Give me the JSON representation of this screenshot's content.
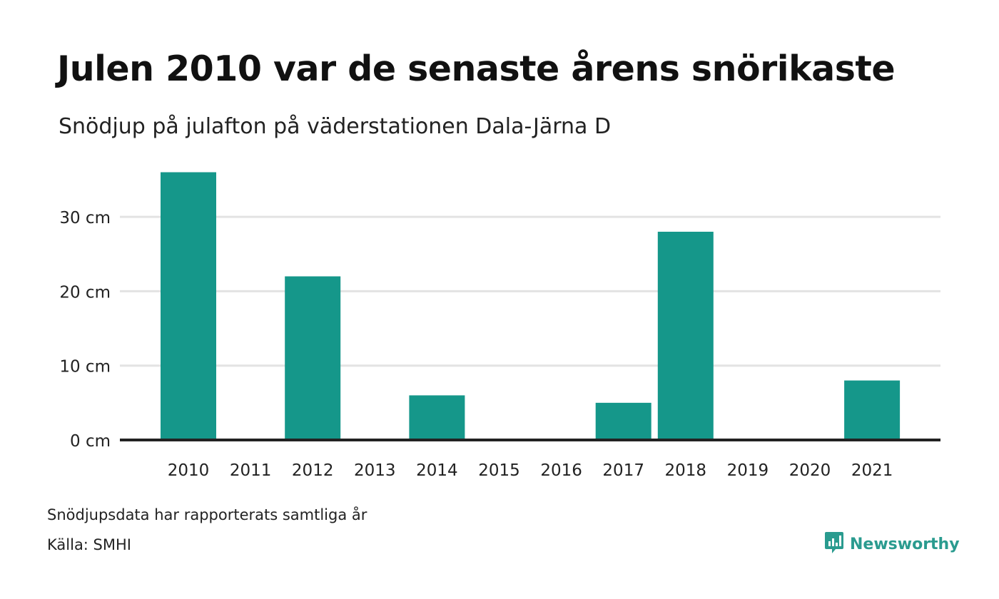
{
  "header": {
    "title": "Julen 2010 var de senaste årens snörikaste",
    "subtitle": "Snödjup på julafton på väderstationen Dala-Järna D"
  },
  "footer": {
    "note": "Snödjupsdata har rapporterats samtliga år",
    "source": "Källa: SMHI",
    "brand": "Newsworthy"
  },
  "colors": {
    "bar": "#15978a",
    "gridline": "#e3e3e3",
    "baseline": "#222222",
    "brand": "#2a9b8f"
  },
  "chart_data": {
    "type": "bar",
    "title": "Julen 2010 var de senaste årens snörikaste",
    "subtitle": "Snödjup på julafton på väderstationen Dala-Järna D",
    "categories": [
      "2010",
      "2011",
      "2012",
      "2013",
      "2014",
      "2015",
      "2016",
      "2017",
      "2018",
      "2019",
      "2020",
      "2021"
    ],
    "values": [
      36,
      0,
      22,
      0,
      6,
      0,
      0,
      5,
      28,
      0,
      0,
      8
    ],
    "unit": "cm",
    "ylim": [
      0,
      36
    ],
    "yticks": [
      0,
      10,
      20,
      30
    ],
    "ytick_labels": [
      "0 cm",
      "10 cm",
      "20 cm",
      "30 cm"
    ],
    "grid": true,
    "legend": "none"
  }
}
